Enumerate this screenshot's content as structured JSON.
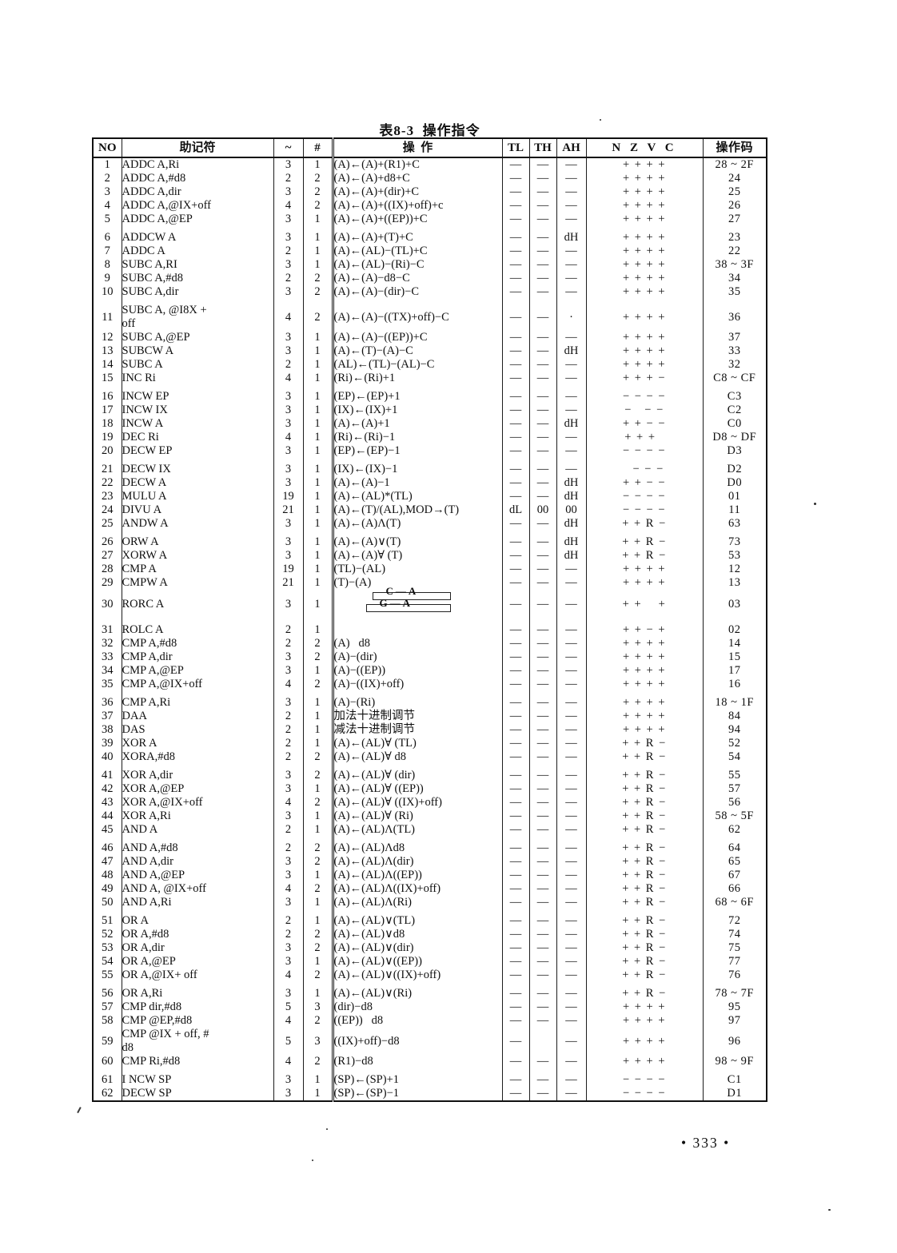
{
  "title": "表8-3  操作指令",
  "page_number": "• 333 •",
  "colors": {
    "paper": "#ffffff",
    "ink": "#111111"
  },
  "table": {
    "columns": [
      "NO",
      "助记符",
      "~",
      "#",
      "操  作",
      "TL",
      "TH",
      "AH",
      "N Z V C",
      "操作码"
    ],
    "rotate_diagram": {
      "top_label": "C—A",
      "bottom_label": "G—A"
    },
    "rows": [
      {
        "no": "1",
        "mnemonic": "ADDC A,Ri",
        "cycles": "3",
        "bytes": "1",
        "operation": "(A)←(A)+(R1)+C",
        "tl": "—",
        "th": "—",
        "ah": "—",
        "nzvc": "+ + + +",
        "opcode": "28 ~ 2F"
      },
      {
        "no": "2",
        "mnemonic": "ADDC A,#d8",
        "cycles": "2",
        "bytes": "2",
        "operation": "(A)←(A)+d8+C",
        "tl": "—",
        "th": "—",
        "ah": "—",
        "nzvc": "+ + + +",
        "opcode": "24"
      },
      {
        "no": "3",
        "mnemonic": "ADDC A,dir",
        "cycles": "3",
        "bytes": "2",
        "operation": "(A)←(A)+(dir)+C",
        "tl": "—",
        "th": "—",
        "ah": "—",
        "nzvc": "+ + + +",
        "opcode": "25"
      },
      {
        "no": "4",
        "mnemonic": "ADDC A,@IX+off",
        "cycles": "4",
        "bytes": "2",
        "operation": "(A)←(A)+((IX)+off)+c",
        "tl": "—",
        "th": "—",
        "ah": "—",
        "nzvc": "+ + + +",
        "opcode": "26"
      },
      {
        "no": "5",
        "mnemonic": "ADDC A,@EP",
        "cycles": "3",
        "bytes": "1",
        "operation": "(A)←(A)+((EP))+C",
        "tl": "—",
        "th": "—",
        "ah": "—",
        "nzvc": "+ + + +",
        "opcode": "27"
      },
      {
        "no": "6",
        "mnemonic": "ADDCW A",
        "cycles": "3",
        "bytes": "1",
        "operation": "(A)←(A)+(T)+C",
        "tl": "—",
        "th": "—",
        "ah": "dH",
        "nzvc": "+ + + +",
        "opcode": "23"
      },
      {
        "no": "7",
        "mnemonic": "ADDC A",
        "cycles": "2",
        "bytes": "1",
        "operation": "(A)←(AL)−(TL)+C",
        "tl": "—",
        "th": "—",
        "ah": "—",
        "nzvc": "+ + + +",
        "opcode": "22"
      },
      {
        "no": "8",
        "mnemonic": "SUBC A,RI",
        "cycles": "3",
        "bytes": "1",
        "operation": "(A)←(AL)−(Ri)−C",
        "tl": "—",
        "th": "—",
        "ah": "—",
        "nzvc": "+ + + +",
        "opcode": "38 ~ 3F"
      },
      {
        "no": "9",
        "mnemonic": "SUBC A,#d8",
        "cycles": "2",
        "bytes": "2",
        "operation": "(A)←(A)−d8−C",
        "tl": "—",
        "th": "—",
        "ah": "—",
        "nzvc": "+ + + +",
        "opcode": "34"
      },
      {
        "no": "10",
        "mnemonic": "SUBC A,dir",
        "cycles": "3",
        "bytes": "2",
        "operation": "(A)←(A)−(dir)−C",
        "tl": "—",
        "th": "—",
        "ah": "—",
        "nzvc": "+ + + +",
        "opcode": "35"
      },
      {
        "no": "11",
        "mnemonic": "SUBC A, @I8X +\noff",
        "cycles": "4",
        "bytes": "2",
        "operation": "(A)←(A)−((TX)+off)−C",
        "tl": "—",
        "th": "—",
        "ah": "·",
        "nzvc": "+ + + +",
        "opcode": "36"
      },
      {
        "no": "12",
        "mnemonic": "SUBC A,@EP",
        "cycles": "3",
        "bytes": "1",
        "operation": "(A)←(A)−((EP))+C",
        "tl": "—",
        "th": "—",
        "ah": "—",
        "nzvc": "+ + + +",
        "opcode": "37"
      },
      {
        "no": "13",
        "mnemonic": "SUBCW A",
        "cycles": "3",
        "bytes": "1",
        "operation": "(A)←(T)−(A)−C",
        "tl": "—",
        "th": "—",
        "ah": "dH",
        "nzvc": "+ + + +",
        "opcode": "33"
      },
      {
        "no": "14",
        "mnemonic": "SUBC A",
        "cycles": "2",
        "bytes": "1",
        "operation": "(AL)←(TL)−(AL)−C",
        "tl": "—",
        "th": "—",
        "ah": "—",
        "nzvc": "+ + + +",
        "opcode": "32"
      },
      {
        "no": "15",
        "mnemonic": "INC Ri",
        "cycles": "4",
        "bytes": "1",
        "operation": "(Ri)←(Ri)+1",
        "tl": "—",
        "th": "—",
        "ah": "—",
        "nzvc": "+ + + −",
        "opcode": "C8 ~ CF"
      },
      {
        "no": "16",
        "mnemonic": "INCW EP",
        "cycles": "3",
        "bytes": "1",
        "operation": "(EP)←(EP)+1",
        "tl": "—",
        "th": "—",
        "ah": "—",
        "nzvc": "− − − −",
        "opcode": "C3"
      },
      {
        "no": "17",
        "mnemonic": "INCW IX",
        "cycles": "3",
        "bytes": "1",
        "operation": "(IX)←(IX)+1",
        "tl": "—",
        "th": "—",
        "ah": "—",
        "nzvc": "−   − −",
        "opcode": "C2"
      },
      {
        "no": "18",
        "mnemonic": "INCW A",
        "cycles": "3",
        "bytes": "1",
        "operation": "(A)←(A)+1",
        "tl": "—",
        "th": "—",
        "ah": "dH",
        "nzvc": "+ + − −",
        "opcode": "C0"
      },
      {
        "no": "19",
        "mnemonic": "DEC Ri",
        "cycles": "4",
        "bytes": "1",
        "operation": "(Ri)←(Ri)−1",
        "tl": "—",
        "th": "—",
        "ah": "—",
        "nzvc": "+ + +  ",
        "opcode": "D8 ~ DF"
      },
      {
        "no": "20",
        "mnemonic": "DECW EP",
        "cycles": "3",
        "bytes": "1",
        "operation": "(EP)←(EP)−1",
        "tl": "—",
        "th": "—",
        "ah": "—",
        "nzvc": "− − − −",
        "opcode": "D3"
      },
      {
        "no": "21",
        "mnemonic": "DECW IX",
        "cycles": "3",
        "bytes": "1",
        "operation": "(IX)←(IX)−1",
        "tl": "—",
        "th": "—",
        "ah": "—",
        "nzvc": "  − − −",
        "opcode": "D2"
      },
      {
        "no": "22",
        "mnemonic": "DECW A",
        "cycles": "3",
        "bytes": "1",
        "operation": "(A)←(A)−1",
        "tl": "—",
        "th": "—",
        "ah": "dH",
        "nzvc": "+ + − −",
        "opcode": "D0"
      },
      {
        "no": "23",
        "mnemonic": "MULU A",
        "cycles": "19",
        "bytes": "1",
        "operation": "(A)←(AL)*(TL)",
        "tl": "—",
        "th": "—",
        "ah": "dH",
        "nzvc": "− − − −",
        "opcode": "01"
      },
      {
        "no": "24",
        "mnemonic": "DIVU A",
        "cycles": "21",
        "bytes": "1",
        "operation": "(A)←(T)/(AL),MOD→(T)",
        "tl": "dL",
        "th": "00",
        "ah": "00",
        "nzvc": "− − − −",
        "opcode": "11"
      },
      {
        "no": "25",
        "mnemonic": "ANDW A",
        "cycles": "3",
        "bytes": "1",
        "operation": "(A)←(A)Λ(T)",
        "tl": "—",
        "th": "—",
        "ah": "dH",
        "nzvc": "+ + R −",
        "opcode": "63"
      },
      {
        "no": "26",
        "mnemonic": "ORW A",
        "cycles": "3",
        "bytes": "1",
        "operation": "(A)←(A)∨(T)",
        "tl": "—",
        "th": "—",
        "ah": "dH",
        "nzvc": "+ + R −",
        "opcode": "73"
      },
      {
        "no": "27",
        "mnemonic": "XORW A",
        "cycles": "3",
        "bytes": "1",
        "operation": "(A)←(A)∀ (T)",
        "tl": "—",
        "th": "—",
        "ah": "dH",
        "nzvc": "+ + R −",
        "opcode": "53"
      },
      {
        "no": "28",
        "mnemonic": "CMP A",
        "cycles": "19",
        "bytes": "1",
        "operation": "(TL)−(AL)",
        "tl": "—",
        "th": "—",
        "ah": "—",
        "nzvc": "+ + + +",
        "opcode": "12"
      },
      {
        "no": "29",
        "mnemonic": "CMPW A",
        "cycles": "21",
        "bytes": "1",
        "operation": "(T)−(A)",
        "tl": "—",
        "th": "—",
        "ah": "—",
        "nzvc": "+ + + +",
        "opcode": "13"
      },
      {
        "no": "30",
        "mnemonic": "RORC A",
        "cycles": "3",
        "bytes": "1",
        "operation": "",
        "diagram": true,
        "tl": "—",
        "th": "—",
        "ah": "—",
        "nzvc": "+ +    +",
        "opcode": "03"
      },
      {
        "no": "31",
        "mnemonic": "ROLC A",
        "cycles": "2",
        "bytes": "1",
        "operation": "",
        "tl": "—",
        "th": "—",
        "ah": "—",
        "nzvc": "+ + − +",
        "opcode": "02"
      },
      {
        "no": "32",
        "mnemonic": "CMP A,#d8",
        "cycles": "2",
        "bytes": "2",
        "operation": "(A)   d8",
        "tl": "—",
        "th": "—",
        "ah": "—",
        "nzvc": "+ + + +",
        "opcode": "14"
      },
      {
        "no": "33",
        "mnemonic": "CMP A,dir",
        "cycles": "3",
        "bytes": "2",
        "operation": "(A)−(dir)",
        "tl": "—",
        "th": "—",
        "ah": "—",
        "nzvc": "+ + + +",
        "opcode": "15"
      },
      {
        "no": "34",
        "mnemonic": "CMP A,@EP",
        "cycles": "3",
        "bytes": "1",
        "operation": "(A)−((EP))",
        "tl": "—",
        "th": "—",
        "ah": "—",
        "nzvc": "+ + + +",
        "opcode": "17"
      },
      {
        "no": "35",
        "mnemonic": "CMP A,@IX+off",
        "cycles": "4",
        "bytes": "2",
        "operation": "(A)−((IX)+off)",
        "tl": "—",
        "th": "—",
        "ah": "—",
        "nzvc": "+ + + +",
        "opcode": "16"
      },
      {
        "no": "36",
        "mnemonic": "CMP A,Ri",
        "cycles": "3",
        "bytes": "1",
        "operation": "(A)−(Ri)",
        "tl": "—",
        "th": "—",
        "ah": "—",
        "nzvc": "+ + + +",
        "opcode": "18 ~ 1F"
      },
      {
        "no": "37",
        "mnemonic": "DAA",
        "cycles": "2",
        "bytes": "1",
        "operation": "加法十进制调节",
        "tl": "—",
        "th": "—",
        "ah": "—",
        "nzvc": "+ + + +",
        "opcode": "84"
      },
      {
        "no": "38",
        "mnemonic": "DAS",
        "cycles": "2",
        "bytes": "1",
        "operation": "减法十进制调节",
        "tl": "—",
        "th": "—",
        "ah": "—",
        "nzvc": "+ + + +",
        "opcode": "94"
      },
      {
        "no": "39",
        "mnemonic": "XOR A",
        "cycles": "2",
        "bytes": "1",
        "operation": "(A)←(AL)∀ (TL)",
        "tl": "—",
        "th": "—",
        "ah": "—",
        "nzvc": "+ + R −",
        "opcode": "52"
      },
      {
        "no": "40",
        "mnemonic": "XORA,#d8",
        "cycles": "2",
        "bytes": "2",
        "operation": "(A)←(AL)∀ d8",
        "tl": "—",
        "th": "—",
        "ah": "—",
        "nzvc": "+ + R −",
        "opcode": "54"
      },
      {
        "no": "41",
        "mnemonic": "XOR A,dir",
        "cycles": "3",
        "bytes": "2",
        "operation": "(A)←(AL)∀ (dir)",
        "tl": "—",
        "th": "—",
        "ah": "—",
        "nzvc": "+ + R −",
        "opcode": "55"
      },
      {
        "no": "42",
        "mnemonic": "XOR A,@EP",
        "cycles": "3",
        "bytes": "1",
        "operation": "(A)←(AL)∀ ((EP))",
        "tl": "—",
        "th": "—",
        "ah": "—",
        "nzvc": "+ + R −",
        "opcode": "57"
      },
      {
        "no": "43",
        "mnemonic": "XOR A,@IX+off",
        "cycles": "4",
        "bytes": "2",
        "operation": "(A)←(AL)∀ ((IX)+off)",
        "tl": "—",
        "th": "—",
        "ah": "—",
        "nzvc": "+ + R −",
        "opcode": "56"
      },
      {
        "no": "44",
        "mnemonic": "XOR A,Ri",
        "cycles": "3",
        "bytes": "1",
        "operation": "(A)←(AL)∀ (Ri)",
        "tl": "—",
        "th": "—",
        "ah": "—",
        "nzvc": "+ + R −",
        "opcode": "58 ~ 5F"
      },
      {
        "no": "45",
        "mnemonic": "AND A",
        "cycles": "2",
        "bytes": "1",
        "operation": "(A)←(AL)Λ(TL)",
        "tl": "—",
        "th": "—",
        "ah": "—",
        "nzvc": "+ + R −",
        "opcode": "62"
      },
      {
        "no": "46",
        "mnemonic": "AND A,#d8",
        "cycles": "2",
        "bytes": "2",
        "operation": "(A)←(AL)Λd8",
        "tl": "—",
        "th": "—",
        "ah": "—",
        "nzvc": "+ + R −",
        "opcode": "64"
      },
      {
        "no": "47",
        "mnemonic": "AND A,dir",
        "cycles": "3",
        "bytes": "2",
        "operation": "(A)←(AL)Λ(dir)",
        "tl": "—",
        "th": "—",
        "ah": "—",
        "nzvc": "+ + R −",
        "opcode": "65"
      },
      {
        "no": "48",
        "mnemonic": "AND A,@EP",
        "cycles": "3",
        "bytes": "1",
        "operation": "(A)←(AL)Λ((EP))",
        "tl": "—",
        "th": "—",
        "ah": "—",
        "nzvc": "+ + R −",
        "opcode": "67"
      },
      {
        "no": "49",
        "mnemonic": "AND A, @IX+off",
        "cycles": "4",
        "bytes": "2",
        "operation": "(A)←(AL)Λ((IX)+off)",
        "tl": "—",
        "th": "—",
        "ah": "—",
        "nzvc": "+ + R −",
        "opcode": "66"
      },
      {
        "no": "50",
        "mnemonic": "AND A,Ri",
        "cycles": "3",
        "bytes": "1",
        "operation": "(A)←(AL)Λ(Ri)",
        "tl": "—",
        "th": "—",
        "ah": "—",
        "nzvc": "+ + R −",
        "opcode": "68 ~ 6F"
      },
      {
        "no": "51",
        "mnemonic": "OR A",
        "cycles": "2",
        "bytes": "1",
        "operation": "(A)←(AL)∨(TL)",
        "tl": "—",
        "th": "—",
        "ah": "—",
        "nzvc": "+ + R −",
        "opcode": "72"
      },
      {
        "no": "52",
        "mnemonic": "OR A,#d8",
        "cycles": "2",
        "bytes": "2",
        "operation": "(A)←(AL)∨d8",
        "tl": "—",
        "th": "—",
        "ah": "—",
        "nzvc": "+ + R −",
        "opcode": "74"
      },
      {
        "no": "53",
        "mnemonic": "OR A,dir",
        "cycles": "3",
        "bytes": "2",
        "operation": "(A)←(AL)∨(dir)",
        "tl": "—",
        "th": "—",
        "ah": "—",
        "nzvc": "+ + R −",
        "opcode": "75"
      },
      {
        "no": "54",
        "mnemonic": "OR A,@EP",
        "cycles": "3",
        "bytes": "1",
        "operation": "(A)←(AL)∨((EP))",
        "tl": "—",
        "th": "—",
        "ah": "—",
        "nzvc": "+ + R −",
        "opcode": "77"
      },
      {
        "no": "55",
        "mnemonic": "OR A,@IX+ off",
        "cycles": "4",
        "bytes": "2",
        "operation": "(A)←(AL)∨((IX)+off)",
        "tl": "—",
        "th": "—",
        "ah": "—",
        "nzvc": "+ + R −",
        "opcode": "76"
      },
      {
        "no": "56",
        "mnemonic": "OR A,Ri",
        "cycles": "3",
        "bytes": "1",
        "operation": "(A)←(AL)∨(Ri)",
        "tl": "—",
        "th": "—",
        "ah": "—",
        "nzvc": "+ + R −",
        "opcode": "78 ~ 7F"
      },
      {
        "no": "57",
        "mnemonic": "CMP dir,#d8",
        "cycles": "5",
        "bytes": "3",
        "operation": "(dir)−d8",
        "tl": "—",
        "th": "—",
        "ah": "—",
        "nzvc": "+ + + +",
        "opcode": "95"
      },
      {
        "no": "58",
        "mnemonic": "CMP @EP,#d8",
        "cycles": "4",
        "bytes": "2",
        "operation": "((EP))   d8",
        "tl": "—",
        "th": "—",
        "ah": "—",
        "nzvc": "+ + + +",
        "opcode": "97"
      },
      {
        "no": "59",
        "mnemonic": "CMP @IX + off, #\nd8",
        "cycles": "5",
        "bytes": "3",
        "operation": "((IX)+off)−d8",
        "tl": "—",
        "th": "",
        "ah": "—",
        "nzvc": "+ + + +",
        "opcode": "96"
      },
      {
        "no": "60",
        "mnemonic": "CMP Ri,#d8",
        "cycles": "4",
        "bytes": "2",
        "operation": "(R1)−d8",
        "tl": "—",
        "th": "—",
        "ah": "—",
        "nzvc": "+ + + +",
        "opcode": "98 ~ 9F"
      },
      {
        "no": "61",
        "mnemonic": "I NCW SP",
        "cycles": "3",
        "bytes": "1",
        "operation": "(SP)←(SP)+1",
        "tl": "—",
        "th": "—",
        "ah": "—",
        "nzvc": "− − − −",
        "opcode": "C1"
      },
      {
        "no": "62",
        "mnemonic": "DECW SP",
        "cycles": "3",
        "bytes": "1",
        "operation": "(SP)←(SP)−1",
        "tl": "—",
        "th": "—",
        "ah": "—",
        "nzvc": "− − − −",
        "opcode": "D1"
      }
    ]
  }
}
